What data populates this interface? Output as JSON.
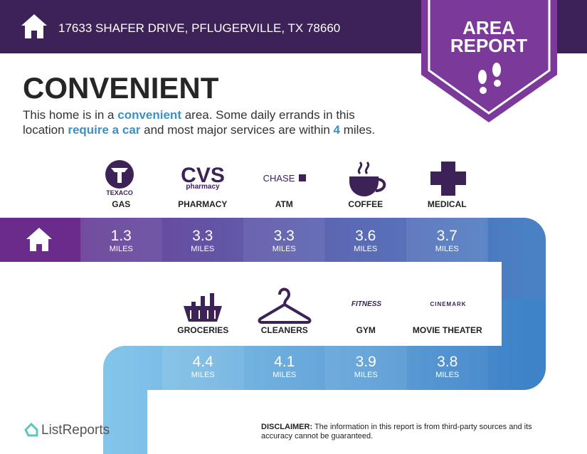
{
  "header": {
    "address": "17633 SHAFER DRIVE, PFLUGERVILLE, TX 78660"
  },
  "badge": {
    "lines": [
      "AREA",
      "REPORT"
    ]
  },
  "headline": "CONVENIENT",
  "description": {
    "lines": [
      [
        {
          "text": "This home is in a ",
          "emphasis": false
        },
        {
          "text": "convenient",
          "emphasis": true
        },
        {
          "text": " area. Some daily errands in this",
          "emphasis": false
        }
      ],
      [
        {
          "text": "location ",
          "emphasis": false
        },
        {
          "text": "require a car",
          "emphasis": true
        },
        {
          "text": " and most major services are within ",
          "emphasis": false
        },
        {
          "text": "4",
          "emphasis": true
        },
        {
          "text": " miles.",
          "emphasis": false
        }
      ]
    ]
  },
  "unit": "MILES",
  "rows": [
    [
      {
        "label": "GAS",
        "distance": 1.3
      },
      {
        "label": "PHARMACY",
        "distance": 3.3
      },
      {
        "label": "ATM",
        "distance": 3.3
      },
      {
        "label": "COFFEE",
        "distance": 3.6
      },
      {
        "label": "MEDICAL",
        "distance": 3.7
      }
    ],
    [
      {
        "label": "GROCERIES",
        "distance": 4.4
      },
      {
        "label": "CLEANERS",
        "distance": 4.1
      },
      {
        "label": "GYM",
        "distance": 3.9
      },
      {
        "label": "MOVIE THEATER",
        "distance": 3.8
      }
    ]
  ],
  "brands": {
    "texaco": "TEXACO",
    "cvs": "CVS",
    "cvs_sub": "pharmacy",
    "chase": "CHASE",
    "fitness": "FITNESS",
    "cinemark": "CINEMARK"
  },
  "footer": {
    "logo": "ListReports",
    "disclaimer_label": "DISCLAIMER:",
    "disclaimer_lines": [
      " The information in this report is from third-party sources and its",
      "accuracy cannot be guaranteed."
    ]
  }
}
